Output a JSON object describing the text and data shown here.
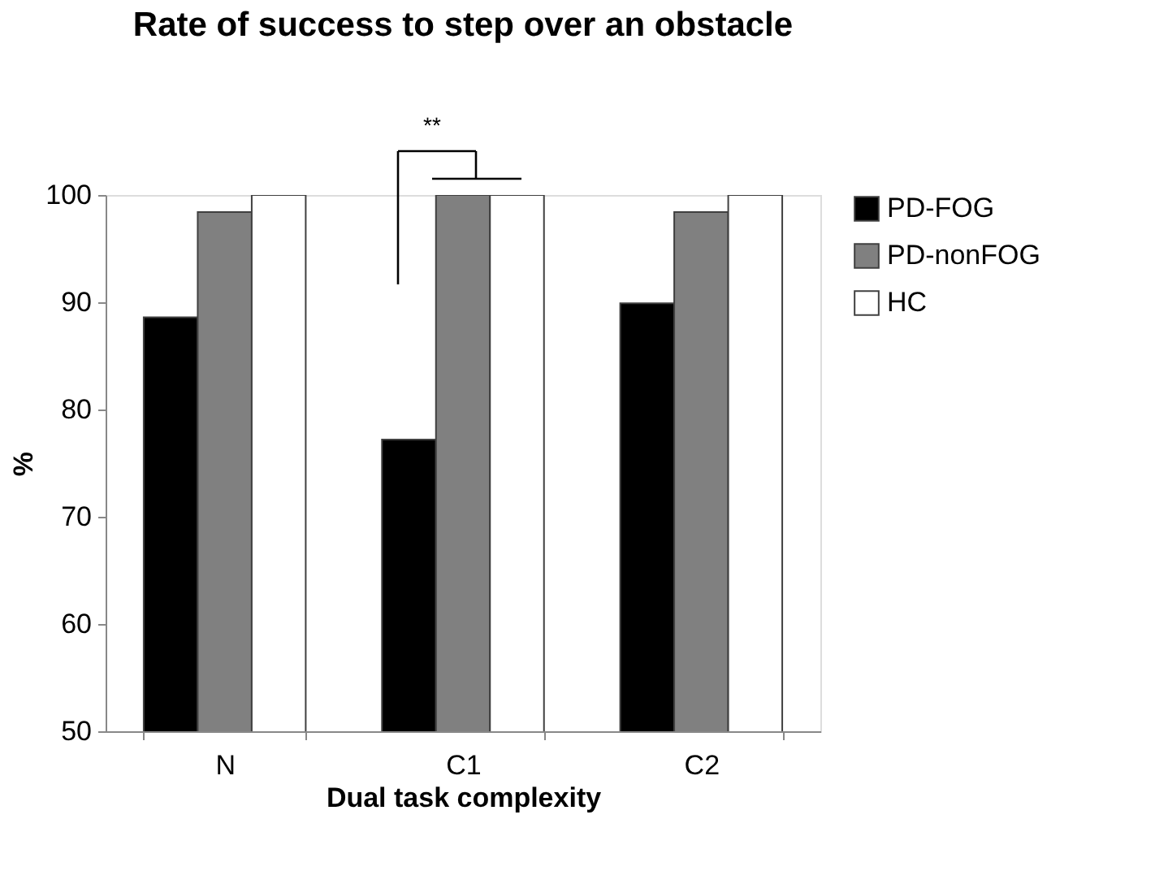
{
  "chart_data": {
    "type": "bar",
    "title": "Rate of success to step over an obstacle",
    "xlabel": "Dual task complexity",
    "ylabel": "%",
    "categories": [
      "N",
      "C1",
      "C2"
    ],
    "series": [
      {
        "name": "PD-FOG",
        "color": "#000000",
        "values": [
          88.6,
          77.2,
          89.9
        ]
      },
      {
        "name": "PD-nonFOG",
        "color": "#808080",
        "values": [
          98.4,
          100,
          98.4
        ]
      },
      {
        "name": "HC",
        "color": "#ffffff",
        "values": [
          100,
          100,
          100
        ]
      }
    ],
    "ylim": [
      50,
      100
    ],
    "yticks": [
      50,
      60,
      70,
      80,
      90,
      100
    ],
    "grid": false,
    "legend": "right",
    "annotations": [
      "**"
    ]
  }
}
